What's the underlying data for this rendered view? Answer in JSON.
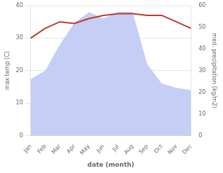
{
  "chart_data": {
    "type": "line",
    "categories": [
      "Jan",
      "Feb",
      "Mar",
      "Apr",
      "May",
      "Jun",
      "Jul",
      "Aug",
      "Sep",
      "Oct",
      "Nov",
      "Dec"
    ],
    "series": [
      {
        "type": "line",
        "color": "#c0392b",
        "values": [
          30,
          33,
          35,
          34.5,
          36,
          37,
          37.5,
          37.5,
          37,
          37,
          35,
          33
        ]
      },
      {
        "type": "area",
        "axis": "y2",
        "color": "#c5cef5",
        "values": [
          26,
          30,
          42,
          52,
          57,
          54,
          57,
          57,
          33,
          24,
          22,
          21
        ]
      }
    ],
    "xlabel": "date (month)",
    "ylabel": "max temp (C)",
    "y2label": "med. precipitation (kg/m2)",
    "ylim": [
      0,
      40
    ],
    "yticks": [
      0,
      10,
      20,
      30,
      40
    ],
    "y2lim": [
      0,
      60
    ],
    "y2ticks": [
      0,
      10,
      20,
      30,
      40,
      50,
      60
    ],
    "grid": true
  }
}
